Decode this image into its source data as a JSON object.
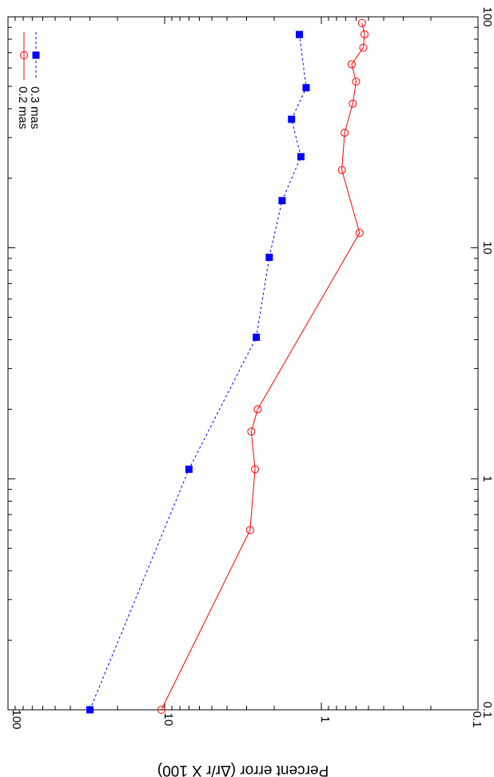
{
  "chart_data": {
    "type": "line",
    "orientation": "rotated 90 degrees clockwise",
    "title": "",
    "xlabel": "",
    "ylabel": "Percent error (Δr/r X 100)",
    "xscale": "log",
    "yscale": "log",
    "xlim": [
      0.1,
      100
    ],
    "ylim": [
      0.1,
      100
    ],
    "x_ticks": [
      "0.1",
      "1",
      "10",
      "100"
    ],
    "y_ticks": [
      "100",
      "10",
      "1",
      "0.1"
    ],
    "legend_placement": "top-left",
    "series": [
      {
        "name": "0.2 mas",
        "color": "#ff0000",
        "line": "solid",
        "marker": "open-circle",
        "x": [
          0.1,
          0.6,
          1.1,
          1.6,
          2.0,
          11.6,
          21.7,
          31.5,
          42.1,
          52.4,
          62.3,
          73.5,
          84.0,
          94.0
        ],
        "y": [
          10.5,
          2.85,
          2.65,
          2.8,
          2.55,
          0.57,
          0.74,
          0.71,
          0.63,
          0.6,
          0.64,
          0.54,
          0.53,
          0.55
        ]
      },
      {
        "name": "0.3 mas",
        "color": "#0000ff",
        "line": "dashed",
        "marker": "filled-square",
        "x": [
          0.1,
          1.1,
          4.1,
          9.1,
          16.0,
          24.8,
          36.0,
          49.3,
          83.8
        ],
        "y": [
          30.0,
          7.0,
          2.6,
          2.15,
          1.78,
          1.35,
          1.55,
          1.25,
          1.38
        ]
      }
    ]
  }
}
